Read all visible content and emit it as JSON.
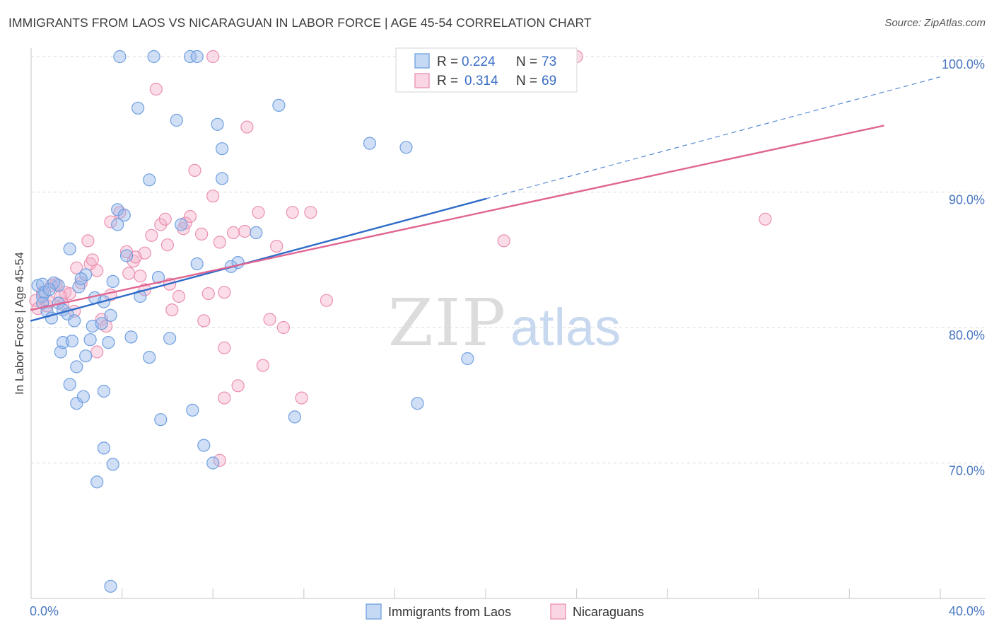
{
  "title": "IMMIGRANTS FROM LAOS VS NICARAGUAN IN LABOR FORCE | AGE 45-54 CORRELATION CHART",
  "source": "Source: ZipAtlas.com",
  "watermark": {
    "zip": "ZIP",
    "atlas": "atlas"
  },
  "colors": {
    "blue": "#6fa0e0",
    "blue_fill": "rgba(150,185,235,0.45)",
    "blue_line": "#2f6cc9",
    "pink": "#ec8fb0",
    "pink_fill": "rgba(245,180,205,0.45)",
    "pink_line": "#e06592",
    "axis_text": "#4a78c2",
    "grid": "#d9d9d9"
  },
  "legend": {
    "rows": [
      {
        "r_label": "R =",
        "r_value": "0.224",
        "n_label": "N =",
        "n_value": "73",
        "color": "blue"
      },
      {
        "r_label": "R =",
        "r_value": "0.314",
        "n_label": "N =",
        "n_value": "69",
        "color": "pink"
      }
    ]
  },
  "bottom_legend": [
    {
      "label": "Immigrants from Laos",
      "color": "blue"
    },
    {
      "label": "Nicaraguans",
      "color": "pink"
    }
  ],
  "chart_data": {
    "type": "scatter",
    "title": "IMMIGRANTS FROM LAOS VS NICARAGUAN IN LABOR FORCE | AGE 45-54 CORRELATION CHART",
    "xlabel": "",
    "ylabel": "In Labor Force | Age 45-54",
    "xlim": [
      0,
      40
    ],
    "ylim": [
      60.5,
      101
    ],
    "x_tick_labels": [
      {
        "value": 0,
        "label": "0.0%"
      },
      {
        "value": 40,
        "label": "40.0%"
      }
    ],
    "y_ticks": [
      {
        "value": 70,
        "label": "70.0%"
      },
      {
        "value": 80,
        "label": "80.0%"
      },
      {
        "value": 90,
        "label": "90.0%"
      },
      {
        "value": 100,
        "label": "100.0%"
      }
    ],
    "grid": true,
    "series": [
      {
        "name": "Immigrants from Laos",
        "color": "blue",
        "R": 0.224,
        "N": 73,
        "trend": {
          "x": [
            0,
            20
          ],
          "y": [
            80.5,
            89.5
          ]
        },
        "trend_extension": {
          "x": [
            20,
            40
          ],
          "y": [
            89.5,
            98.5
          ]
        },
        "points": [
          [
            0.3,
            83.1
          ],
          [
            0.5,
            83.2
          ],
          [
            0.5,
            82.3
          ],
          [
            0.6,
            82.6
          ],
          [
            0.5,
            81.8
          ],
          [
            0.7,
            81.2
          ],
          [
            0.9,
            80.7
          ],
          [
            1.2,
            83.1
          ],
          [
            1.2,
            81.8
          ],
          [
            1.4,
            81.3
          ],
          [
            1.6,
            81.0
          ],
          [
            1.7,
            85.8
          ],
          [
            1.9,
            80.5
          ],
          [
            2.1,
            83.0
          ],
          [
            2.4,
            83.9
          ],
          [
            1.3,
            78.2
          ],
          [
            1.4,
            78.9
          ],
          [
            1.8,
            79.0
          ],
          [
            2.0,
            77.1
          ],
          [
            2.4,
            77.9
          ],
          [
            2.6,
            79.1
          ],
          [
            2.7,
            80.1
          ],
          [
            3.1,
            80.3
          ],
          [
            3.2,
            75.3
          ],
          [
            1.7,
            75.8
          ],
          [
            2.0,
            74.4
          ],
          [
            2.3,
            74.9
          ],
          [
            3.2,
            81.9
          ],
          [
            3.4,
            78.9
          ],
          [
            3.6,
            83.4
          ],
          [
            3.8,
            87.6
          ],
          [
            3.8,
            88.7
          ],
          [
            4.1,
            88.3
          ],
          [
            4.2,
            85.3
          ],
          [
            4.4,
            79.3
          ],
          [
            4.8,
            82.3
          ],
          [
            5.2,
            77.8
          ],
          [
            5.6,
            83.7
          ],
          [
            6.1,
            79.2
          ],
          [
            6.4,
            95.3
          ],
          [
            6.6,
            87.6
          ],
          [
            7.3,
            84.7
          ],
          [
            7.6,
            71.3
          ],
          [
            7.1,
            73.9
          ],
          [
            5.7,
            73.2
          ],
          [
            3.2,
            71.1
          ],
          [
            3.6,
            69.9
          ],
          [
            2.9,
            68.6
          ],
          [
            3.5,
            60.9
          ],
          [
            3.9,
            100.0
          ],
          [
            5.4,
            100.0
          ],
          [
            7.0,
            100.0
          ],
          [
            7.3,
            100.0
          ],
          [
            4.7,
            96.2
          ],
          [
            5.2,
            90.9
          ],
          [
            8.2,
            95.0
          ],
          [
            8.4,
            93.2
          ],
          [
            8.4,
            91.0
          ],
          [
            8.8,
            84.5
          ],
          [
            9.1,
            84.8
          ],
          [
            9.9,
            87.0
          ],
          [
            10.9,
            96.4
          ],
          [
            11.6,
            73.4
          ],
          [
            14.9,
            93.6
          ],
          [
            16.5,
            93.3
          ],
          [
            17.0,
            74.4
          ],
          [
            19.2,
            77.7
          ],
          [
            8.0,
            70.0
          ],
          [
            2.8,
            82.2
          ],
          [
            3.5,
            80.9
          ],
          [
            1.0,
            83.3
          ],
          [
            0.8,
            82.8
          ],
          [
            2.2,
            83.6
          ]
        ]
      },
      {
        "name": "Nicaraguans",
        "color": "pink",
        "R": 0.314,
        "N": 69,
        "trend": {
          "x": [
            0,
            37.5
          ],
          "y": [
            81.3,
            94.9
          ]
        },
        "points": [
          [
            0.2,
            82.0
          ],
          [
            0.3,
            81.4
          ],
          [
            0.5,
            82.6
          ],
          [
            0.7,
            81.6
          ],
          [
            0.8,
            81.9
          ],
          [
            0.9,
            83.1
          ],
          [
            1.1,
            83.2
          ],
          [
            1.4,
            81.7
          ],
          [
            1.5,
            82.6
          ],
          [
            1.7,
            82.5
          ],
          [
            1.9,
            81.2
          ],
          [
            2.0,
            84.4
          ],
          [
            2.2,
            83.3
          ],
          [
            2.5,
            86.4
          ],
          [
            2.6,
            84.7
          ],
          [
            2.7,
            85.0
          ],
          [
            2.9,
            84.2
          ],
          [
            3.1,
            80.6
          ],
          [
            3.3,
            80.1
          ],
          [
            3.5,
            82.4
          ],
          [
            3.5,
            87.8
          ],
          [
            3.9,
            88.5
          ],
          [
            4.2,
            85.6
          ],
          [
            4.5,
            84.9
          ],
          [
            4.6,
            85.2
          ],
          [
            4.8,
            83.8
          ],
          [
            5.0,
            85.5
          ],
          [
            5.3,
            86.8
          ],
          [
            5.5,
            97.6
          ],
          [
            5.7,
            87.6
          ],
          [
            5.9,
            88.0
          ],
          [
            6.0,
            86.1
          ],
          [
            6.1,
            83.2
          ],
          [
            6.5,
            82.3
          ],
          [
            6.7,
            87.3
          ],
          [
            6.8,
            87.7
          ],
          [
            7.0,
            88.2
          ],
          [
            7.2,
            91.6
          ],
          [
            7.5,
            86.9
          ],
          [
            7.6,
            80.5
          ],
          [
            7.8,
            82.5
          ],
          [
            8.0,
            89.7
          ],
          [
            8.3,
            86.3
          ],
          [
            8.5,
            78.5
          ],
          [
            8.5,
            82.6
          ],
          [
            8.5,
            74.8
          ],
          [
            8.9,
            87.0
          ],
          [
            9.1,
            75.7
          ],
          [
            9.4,
            87.1
          ],
          [
            9.5,
            94.8
          ],
          [
            10.0,
            88.5
          ],
          [
            10.2,
            77.2
          ],
          [
            10.5,
            80.6
          ],
          [
            10.8,
            86.0
          ],
          [
            11.1,
            80.0
          ],
          [
            11.5,
            88.5
          ],
          [
            11.9,
            74.8
          ],
          [
            12.3,
            88.5
          ],
          [
            13.0,
            82.0
          ],
          [
            20.8,
            86.4
          ],
          [
            24.0,
            100.0
          ],
          [
            32.3,
            88.0
          ],
          [
            8.0,
            100.0
          ],
          [
            8.3,
            70.2
          ],
          [
            5.0,
            82.8
          ],
          [
            2.9,
            78.2
          ],
          [
            6.2,
            81.3
          ],
          [
            4.3,
            84.0
          ],
          [
            1.3,
            82.3
          ]
        ]
      }
    ]
  }
}
